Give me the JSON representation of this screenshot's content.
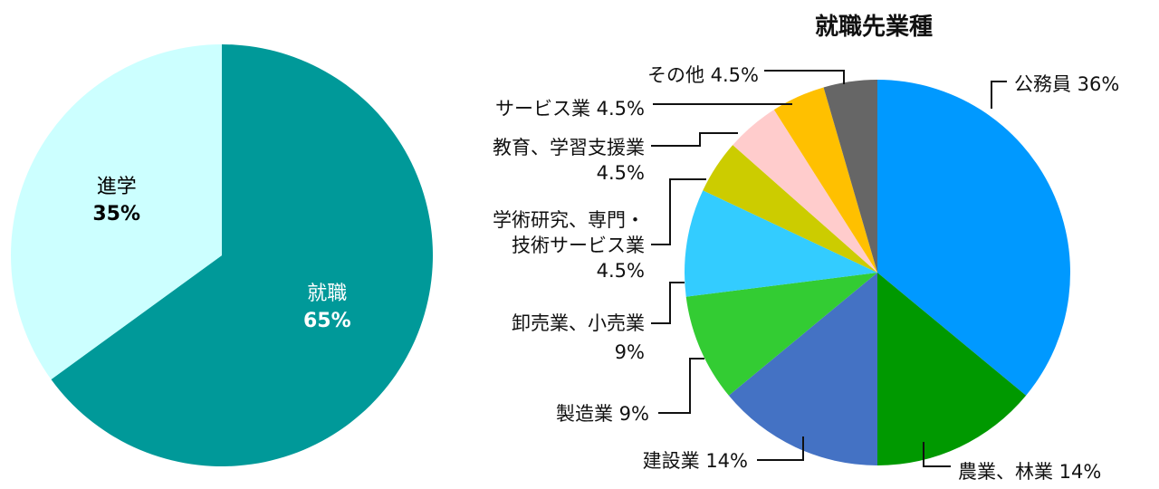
{
  "chart_data": [
    {
      "type": "pie",
      "title": "",
      "slices": [
        {
          "label": "就職",
          "value_label": "65%",
          "value": 65,
          "color": "#009999",
          "text_color": "#ffffff"
        },
        {
          "label": "進学",
          "value_label": "35%",
          "value": 35,
          "color": "#ccffff",
          "text_color": "#000000"
        }
      ]
    },
    {
      "type": "pie",
      "title": "就職先業種",
      "slices": [
        {
          "label_lines": [
            "公務員 36%"
          ],
          "value": 36,
          "color": "#0099ff"
        },
        {
          "label_lines": [
            "農業、林業 14%"
          ],
          "value": 14,
          "color": "#009900"
        },
        {
          "label_lines": [
            "建設業 14%"
          ],
          "value": 14,
          "color": "#4472c4"
        },
        {
          "label_lines": [
            "製造業 9%"
          ],
          "value": 9,
          "color": "#33cc33"
        },
        {
          "label_lines": [
            "卸売業、小売業",
            "9%"
          ],
          "value": 9,
          "color": "#33ccff"
        },
        {
          "label_lines": [
            "学術研究、専門・",
            "技術サービス業",
            "4.5%"
          ],
          "value": 4.5,
          "color": "#cccc00"
        },
        {
          "label_lines": [
            "教育、学習支援業",
            "4.5%"
          ],
          "value": 4.5,
          "color": "#ffcccc"
        },
        {
          "label_lines": [
            "サービス業 4.5%"
          ],
          "value": 4.5,
          "color": "#ffc000"
        },
        {
          "label_lines": [
            "その他 4.5%"
          ],
          "value": 4.5,
          "color": "#666666"
        }
      ]
    }
  ]
}
